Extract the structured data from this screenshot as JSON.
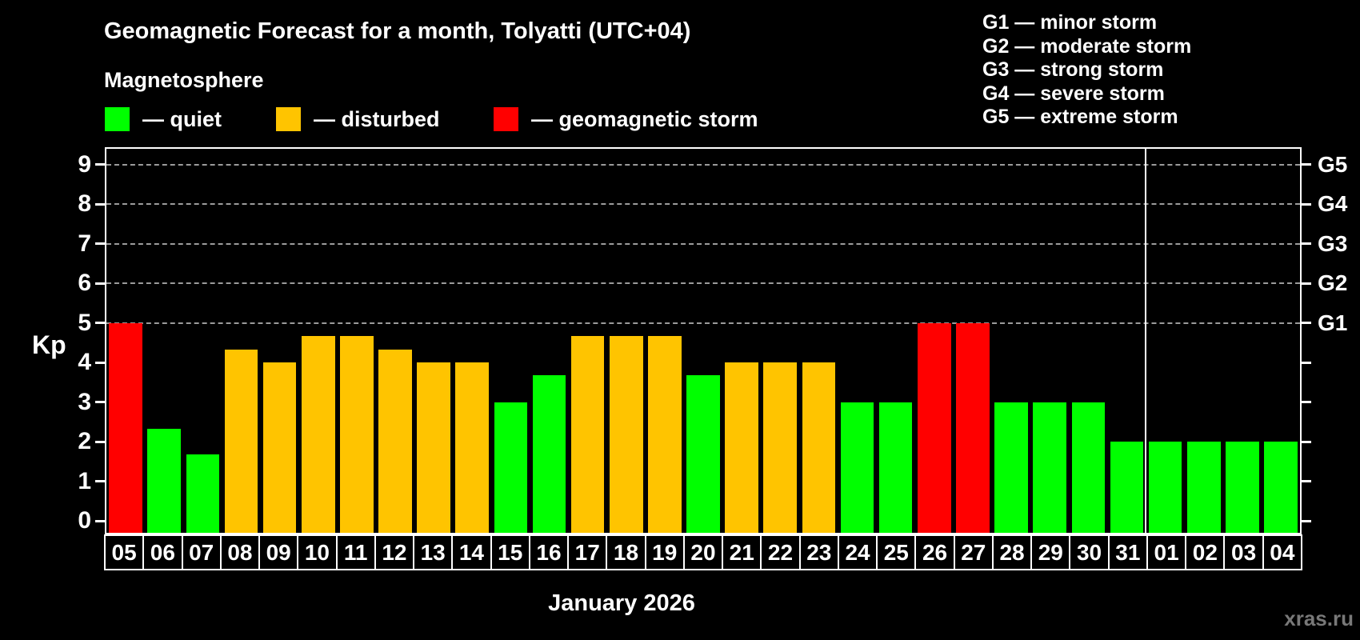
{
  "chart_data": {
    "type": "bar",
    "title": "Geomagnetic Forecast for a month, Tolyatti (UTC+04)",
    "subtitle": "Magnetosphere",
    "xlabel": "January 2026",
    "ylabel": "Kp",
    "ylim": [
      0,
      9
    ],
    "yticks": [
      0,
      1,
      2,
      3,
      4,
      5,
      6,
      7,
      8,
      9
    ],
    "grid_kp_levels": [
      5,
      6,
      7,
      8,
      9
    ],
    "right_axis": [
      {
        "kp": 5,
        "label": "G1"
      },
      {
        "kp": 6,
        "label": "G2"
      },
      {
        "kp": 7,
        "label": "G3"
      },
      {
        "kp": 8,
        "label": "G4"
      },
      {
        "kp": 9,
        "label": "G5"
      }
    ],
    "categories": [
      "05",
      "06",
      "07",
      "08",
      "09",
      "10",
      "11",
      "12",
      "13",
      "14",
      "15",
      "16",
      "17",
      "18",
      "19",
      "20",
      "21",
      "22",
      "23",
      "24",
      "25",
      "26",
      "27",
      "28",
      "29",
      "30",
      "31",
      "01",
      "02",
      "03",
      "04"
    ],
    "values": [
      5,
      2.33,
      1.67,
      4.33,
      4,
      4.67,
      4.67,
      4.33,
      4,
      4,
      3,
      3.67,
      4.67,
      4.67,
      4.67,
      3.67,
      4,
      4,
      4,
      3,
      3,
      5,
      5,
      3,
      3,
      3,
      2,
      2,
      2,
      2,
      2
    ],
    "statuses": [
      "storm",
      "quiet",
      "quiet",
      "disturbed",
      "disturbed",
      "disturbed",
      "disturbed",
      "disturbed",
      "disturbed",
      "disturbed",
      "quiet",
      "quiet",
      "disturbed",
      "disturbed",
      "disturbed",
      "quiet",
      "disturbed",
      "disturbed",
      "disturbed",
      "quiet",
      "quiet",
      "storm",
      "storm",
      "quiet",
      "quiet",
      "quiet",
      "quiet",
      "quiet",
      "quiet",
      "quiet",
      "quiet"
    ],
    "month_slots": 27,
    "grid": true,
    "legend_position": "top"
  },
  "legend": {
    "items": [
      {
        "status": "quiet",
        "label": "— quiet"
      },
      {
        "status": "disturbed",
        "label": "— disturbed"
      },
      {
        "status": "storm",
        "label": "— geomagnetic storm"
      }
    ]
  },
  "g_legend": [
    "G1 — minor storm",
    "G2 — moderate storm",
    "G3 — strong storm",
    "G4 — severe storm",
    "G5 — extreme storm"
  ],
  "watermark": "xras.ru",
  "colors": {
    "background": "#000000",
    "quiet": "#00ff00",
    "disturbed": "#ffc400",
    "storm": "#ff0000",
    "frame": "#ffffff",
    "grid": "#9b9b9b",
    "watermark": "#787878"
  }
}
